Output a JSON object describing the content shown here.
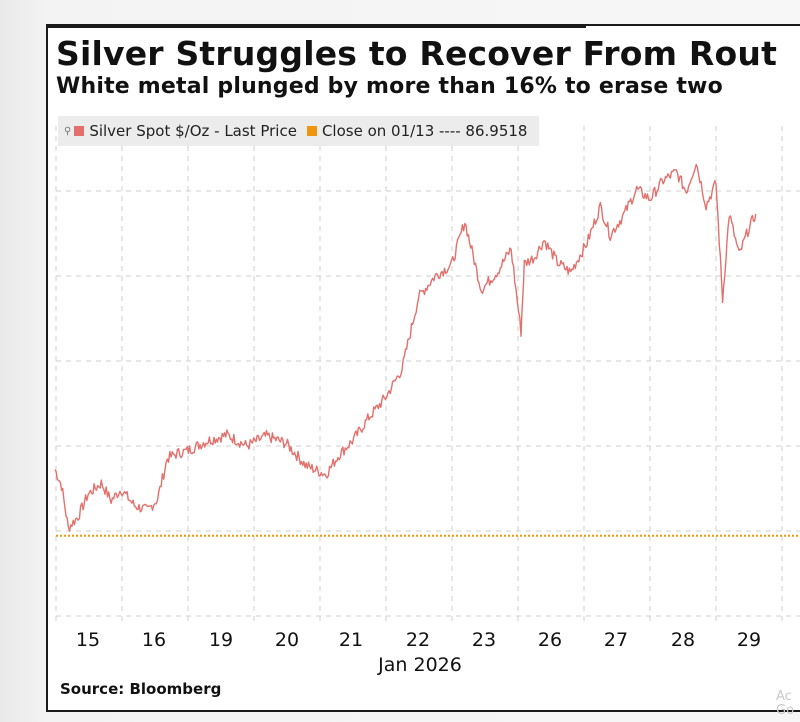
{
  "title": "Silver Struggles to Recover From Rout",
  "subtitle": "White metal plunged by more than 16% to erase two",
  "source": "Source: Bloomberg",
  "watermark": "Ac\nGo",
  "colors": {
    "series": "#e3706c",
    "reference": "#f0960e",
    "grid": "#cfcfcf"
  },
  "chart_data": {
    "type": "line",
    "title": "Silver Struggles to Recover From Rout",
    "subtitle": "White metal plunged by more than 16% to erase two",
    "xlabel": "Jan 2026",
    "ylabel": "",
    "x_ticks": [
      "15",
      "16",
      "19",
      "20",
      "21",
      "22",
      "23",
      "26",
      "27",
      "28",
      "29"
    ],
    "x_month_label": "Jan 2026",
    "ylim": [
      80,
      120
    ],
    "grid": true,
    "legend_position": "top-left",
    "series": [
      {
        "name": "Silver Spot $/Oz - Last Price",
        "color": "#e3706c",
        "x_day_index": [
          0,
          0.1,
          0.2,
          0.35,
          0.5,
          0.7,
          0.85,
          1.0,
          1.2,
          1.4,
          1.55,
          1.7,
          1.85,
          2.0,
          2.3,
          2.6,
          2.9,
          3.2,
          3.5,
          3.8,
          4.1,
          4.3,
          4.5,
          4.75,
          5.0,
          5.25,
          5.5,
          5.75,
          6.0,
          6.2,
          6.45,
          6.7,
          6.9,
          7.05,
          7.1,
          7.25,
          7.4,
          7.6,
          7.8,
          8.05,
          8.25,
          8.4,
          8.6,
          8.8,
          9.0,
          9.2,
          9.4,
          9.55,
          9.7,
          9.85,
          10.0,
          10.1,
          10.2,
          10.35,
          10.5,
          10.6
        ],
        "values": [
          92.3,
          91.0,
          87.6,
          88.5,
          90.3,
          91.2,
          89.8,
          90.7,
          89.4,
          89.0,
          89.9,
          93.2,
          93.6,
          93.8,
          94.6,
          95.1,
          94.2,
          95.0,
          94.4,
          92.6,
          91.9,
          93.5,
          94.6,
          96.5,
          98.1,
          100.4,
          106.2,
          107.9,
          108.8,
          112.3,
          106.8,
          108.3,
          110.1,
          103.4,
          108.9,
          109.4,
          110.8,
          109.0,
          108.2,
          110.6,
          113.5,
          111.2,
          112.8,
          114.9,
          114.1,
          115.6,
          116.3,
          114.7,
          117.1,
          113.6,
          115.4,
          106.0,
          112.9,
          109.6,
          111.8,
          112.9
        ]
      },
      {
        "name": "Close on 01/13",
        "color": "#f0960e",
        "dashed": true,
        "value": 86.9518,
        "label": "Close on 01/13 ---- 86.9518"
      }
    ]
  }
}
